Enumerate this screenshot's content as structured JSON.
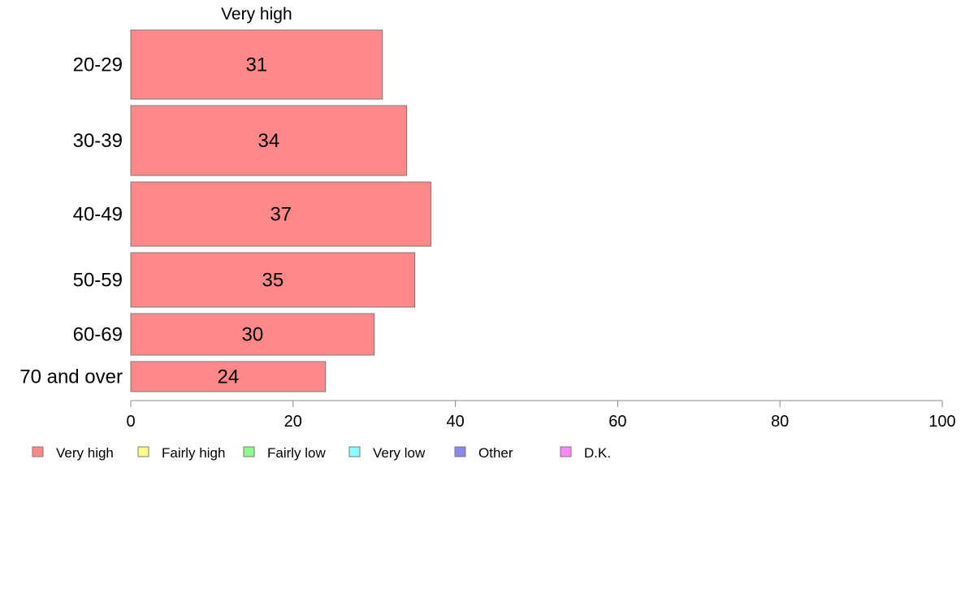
{
  "chart_data": {
    "type": "bar",
    "orientation": "horizontal",
    "stacked": true,
    "categories": [
      "20-29",
      "30-39",
      "40-49",
      "50-59",
      "60-69",
      "70 and over"
    ],
    "series": [
      {
        "name": "Very high",
        "color": "#ff8888",
        "values": [
          31,
          34,
          37,
          35,
          30,
          24
        ]
      }
    ],
    "series_header": "Very high",
    "xlim": [
      0,
      100
    ],
    "xticks": [
      0,
      20,
      40,
      60,
      80,
      100
    ],
    "legend_position": "bottom-left",
    "legend": [
      {
        "label": "Very high",
        "color": "#ff8888"
      },
      {
        "label": "Fairly high",
        "color": "#ffff88"
      },
      {
        "label": "Fairly low",
        "color": "#88ff88"
      },
      {
        "label": "Very low",
        "color": "#88ffff"
      },
      {
        "label": "Other",
        "color": "#8888ee"
      },
      {
        "label": "D.K.",
        "color": "#ff88ff"
      }
    ]
  }
}
